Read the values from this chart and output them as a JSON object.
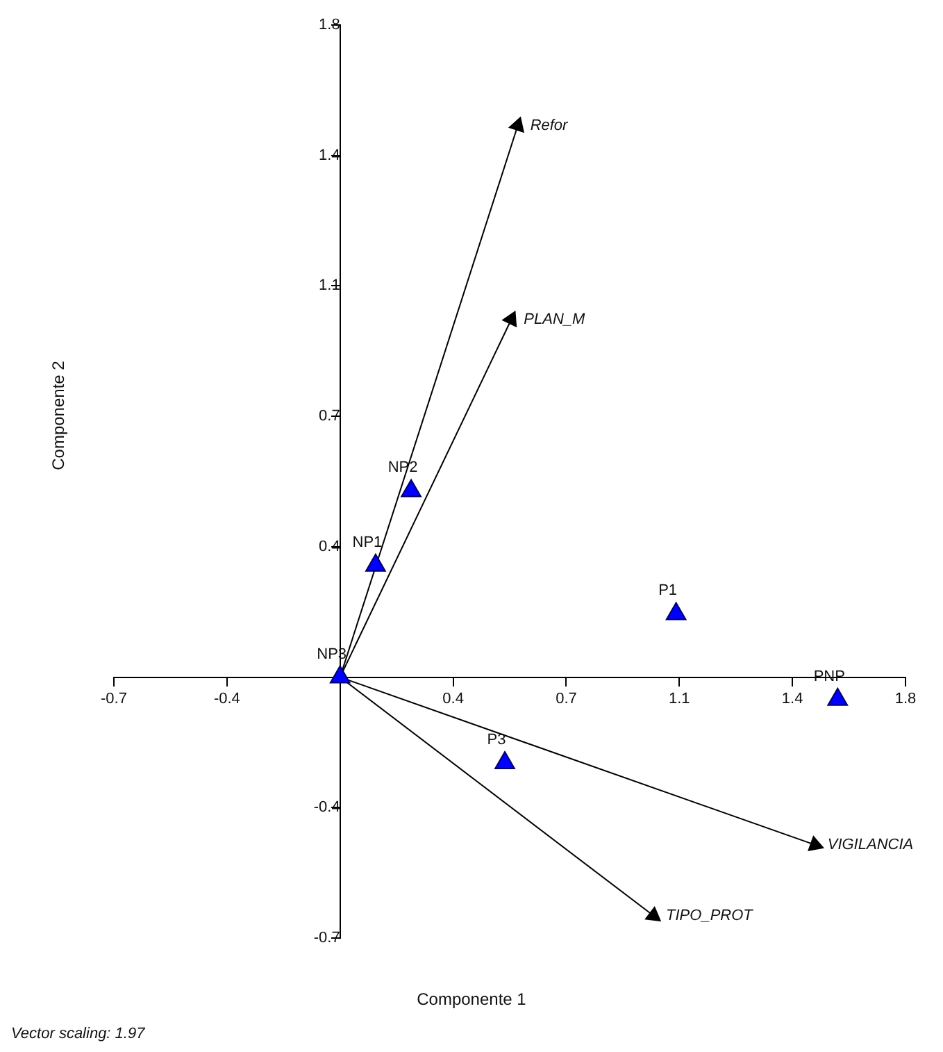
{
  "chart_data": {
    "type": "scatter",
    "xlabel": "Componente 1",
    "ylabel": "Componente 2",
    "annotations": [
      "Vector scaling: 1.97"
    ],
    "xlim": [
      -0.7,
      1.75
    ],
    "ylim": [
      -0.7,
      1.75
    ],
    "xticks": [
      {
        "value": -0.7,
        "label": "-0.7"
      },
      {
        "value": -0.35,
        "label": "-0.4"
      },
      {
        "value": 0.35,
        "label": "0.4"
      },
      {
        "value": 0.7,
        "label": "0.7"
      },
      {
        "value": 1.05,
        "label": "1.1"
      },
      {
        "value": 1.4,
        "label": "1.4"
      },
      {
        "value": 1.75,
        "label": "1.8"
      }
    ],
    "yticks": [
      {
        "value": -0.7,
        "label": "-0.7"
      },
      {
        "value": -0.35,
        "label": "-0.4"
      },
      {
        "value": 0.35,
        "label": "0.4"
      },
      {
        "value": 0.7,
        "label": "0.7"
      },
      {
        "value": 1.05,
        "label": "1.1"
      },
      {
        "value": 1.4,
        "label": "1.4"
      },
      {
        "value": 1.75,
        "label": "1.8"
      }
    ],
    "grid": false,
    "legend": false,
    "marker": "triangle",
    "series": [
      {
        "name": "NP1",
        "color": "#0000ff",
        "x": [
          0.11
        ],
        "values": [
          0.3
        ]
      },
      {
        "name": "NP2",
        "color": "#0000ff",
        "x": [
          0.22
        ],
        "values": [
          0.5
        ]
      },
      {
        "name": "NP3",
        "color": "#0000ff",
        "x": [
          0
        ],
        "values": [
          0
        ]
      },
      {
        "name": "P1",
        "color": "#0000ff",
        "x": [
          1.04
        ],
        "values": [
          0.17
        ]
      },
      {
        "name": "PNP",
        "color": "#0000ff",
        "x": [
          1.54
        ],
        "values": [
          -0.06
        ]
      },
      {
        "name": "P3",
        "color": "#0000ff",
        "x": [
          0.51
        ],
        "values": [
          -0.23
        ]
      },
      {
        "name": "Refor",
        "type": "line",
        "color": "#000000",
        "x": [
          0,
          0.55
        ],
        "values": [
          0,
          1.48
        ]
      },
      {
        "name": "PLAN_M",
        "type": "line",
        "color": "#000000",
        "x": [
          0,
          0.53
        ],
        "values": [
          0,
          0.96
        ]
      },
      {
        "name": "VIGILANCIA",
        "type": "line",
        "color": "#000000",
        "x": [
          0,
          1.47
        ],
        "values": [
          0,
          -0.45
        ]
      },
      {
        "name": "TIPO_PROT",
        "type": "line",
        "color": "#000000",
        "x": [
          0,
          0.97
        ],
        "values": [
          0,
          -0.64
        ]
      }
    ]
  }
}
